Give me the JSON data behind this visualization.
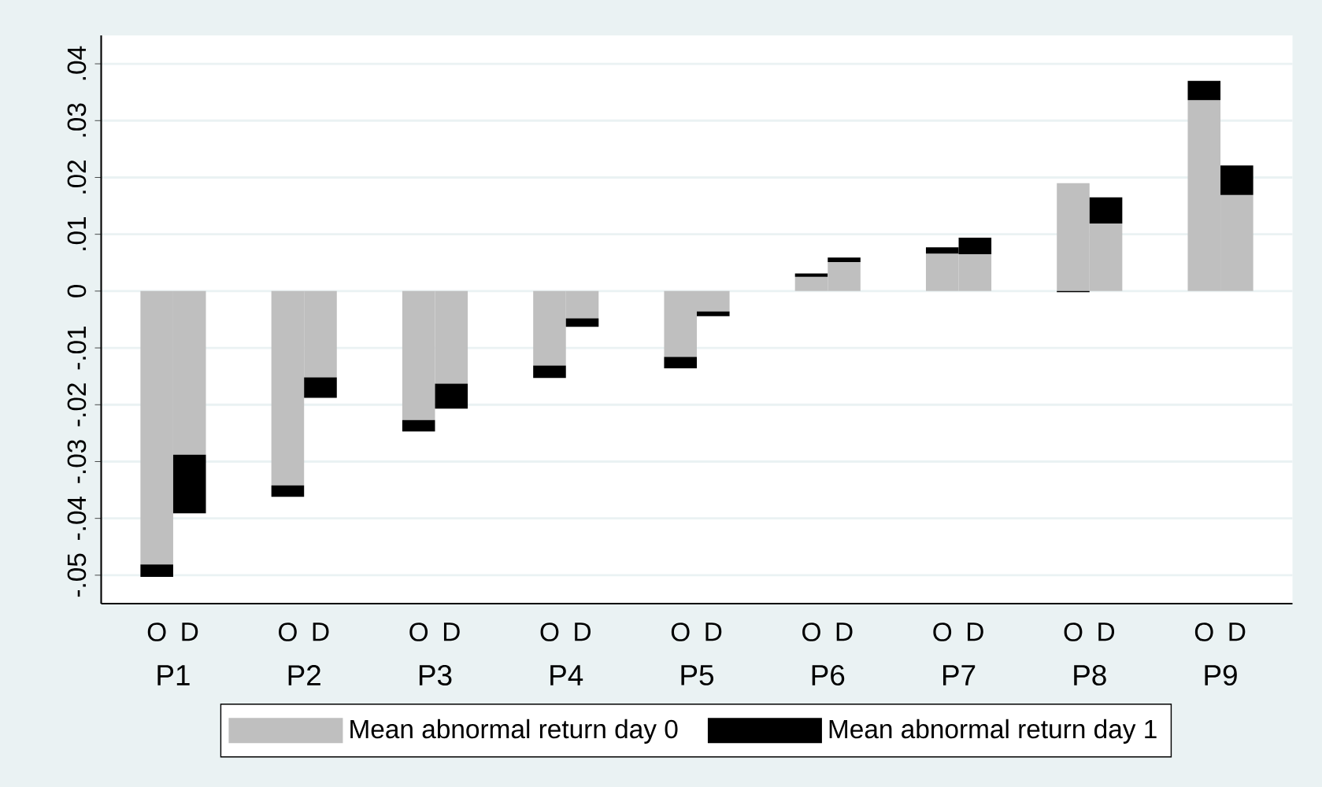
{
  "chart_data": {
    "type": "bar",
    "stacked": true,
    "categories": [
      "O",
      "D",
      "O",
      "D",
      "O",
      "D",
      "O",
      "D",
      "O",
      "D",
      "O",
      "D",
      "O",
      "D",
      "O",
      "D",
      "O",
      "D"
    ],
    "series": [
      {
        "name": "Mean abnormal return day 0",
        "color": "#bfbfbf",
        "values": [
          -0.0481,
          -0.0288,
          -0.0342,
          -0.0152,
          -0.0227,
          -0.0163,
          -0.0131,
          -0.0048,
          -0.0116,
          -0.0036,
          0.0025,
          0.0051,
          0.0066,
          0.0065,
          0.019,
          0.0119,
          0.0336,
          0.0169
        ]
      },
      {
        "name": "Mean abnormal return day 1",
        "color": "#000000",
        "values": [
          -0.0022,
          -0.0103,
          -0.002,
          -0.0036,
          -0.002,
          -0.0044,
          -0.0022,
          -0.0015,
          -0.002,
          -0.0008,
          0.0006,
          0.0008,
          0.0011,
          0.0029,
          -0.0002,
          0.0046,
          0.0034,
          0.0052
        ]
      }
    ],
    "ylim": [
      -0.055,
      0.045
    ],
    "yticks": [
      {
        "value": -0.05,
        "label": "-.05"
      },
      {
        "value": -0.04,
        "label": "-.04"
      },
      {
        "value": -0.03,
        "label": "-.03"
      },
      {
        "value": -0.02,
        "label": "-.02"
      },
      {
        "value": -0.01,
        "label": "-.01"
      },
      0,
      {
        "value": 0.01,
        "label": ".01"
      },
      {
        "value": 0.02,
        "label": ".02"
      },
      {
        "value": 0.03,
        "label": ".03"
      },
      {
        "value": 0.04,
        "label": ".04"
      }
    ],
    "grid": "y",
    "legend": "bottom",
    "annotations": [
      "P1",
      "P2",
      "P3",
      "P4",
      "P5",
      "P6",
      "P7",
      "P8",
      "P9"
    ]
  }
}
